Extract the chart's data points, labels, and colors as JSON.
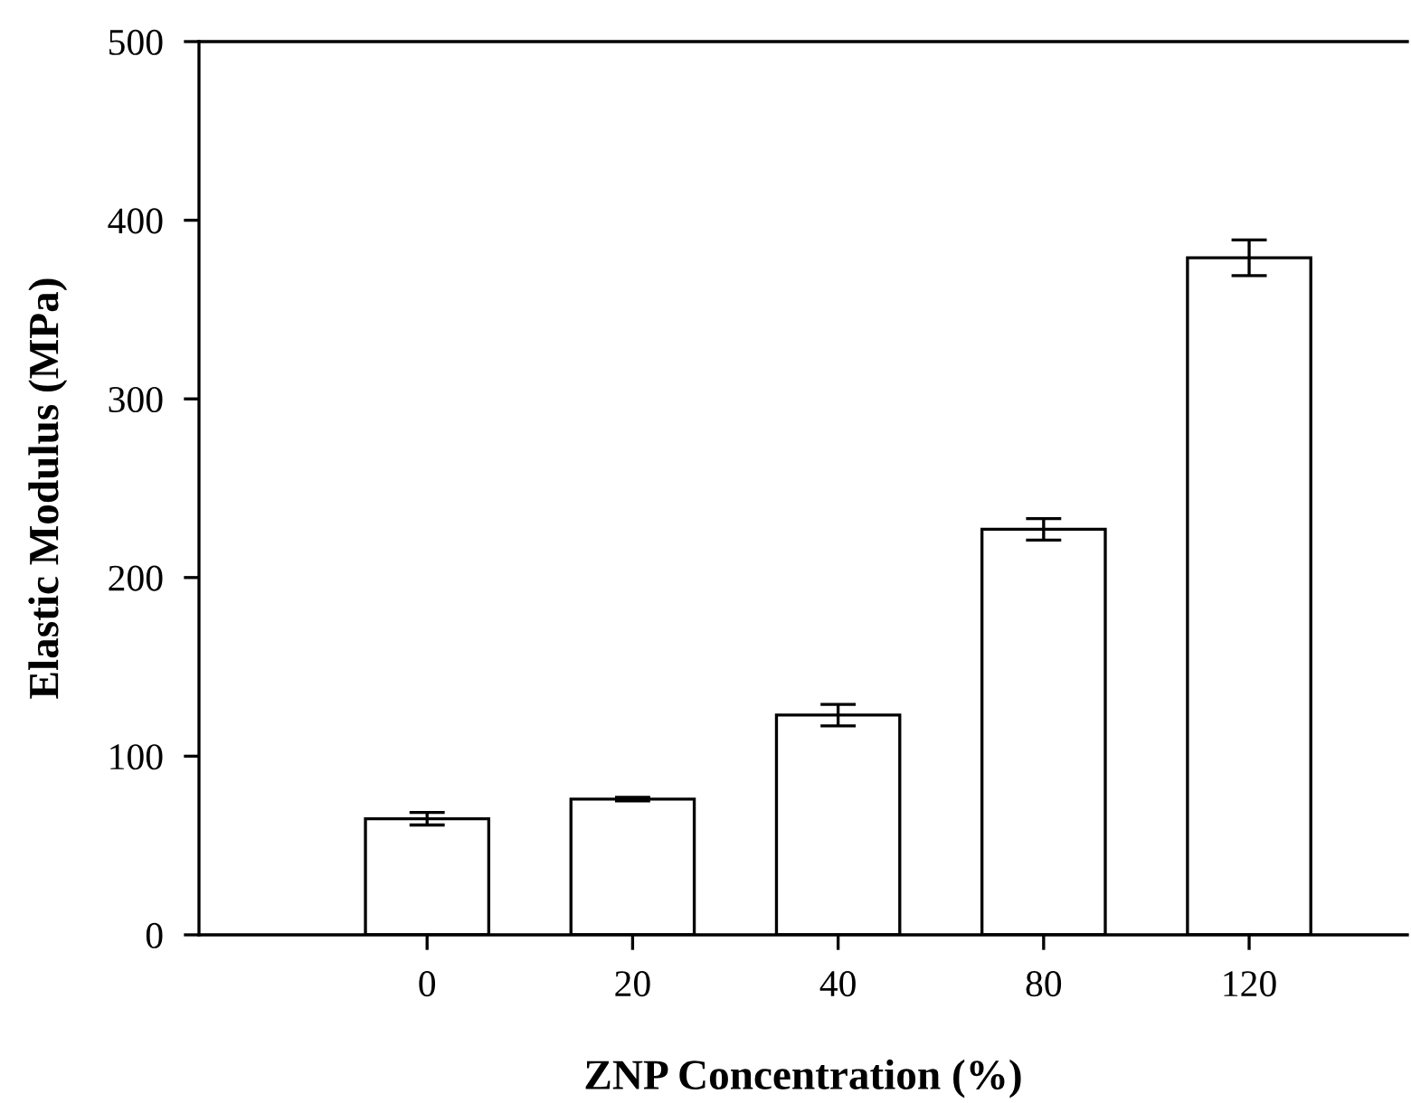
{
  "chart_data": {
    "type": "bar",
    "xlabel": "ZNP Concentration (%)",
    "ylabel": "Elastic Modulus (MPa)",
    "categories": [
      "0",
      "20",
      "40",
      "80",
      "120"
    ],
    "values": [
      65,
      76,
      123,
      227,
      379
    ],
    "errors": [
      3.5,
      1,
      6,
      6,
      10
    ],
    "color": "#ffffff",
    "ylim": [
      0,
      500
    ],
    "yticks": [
      0,
      100,
      200,
      300,
      400,
      500
    ],
    "grid": false,
    "legend": false
  }
}
